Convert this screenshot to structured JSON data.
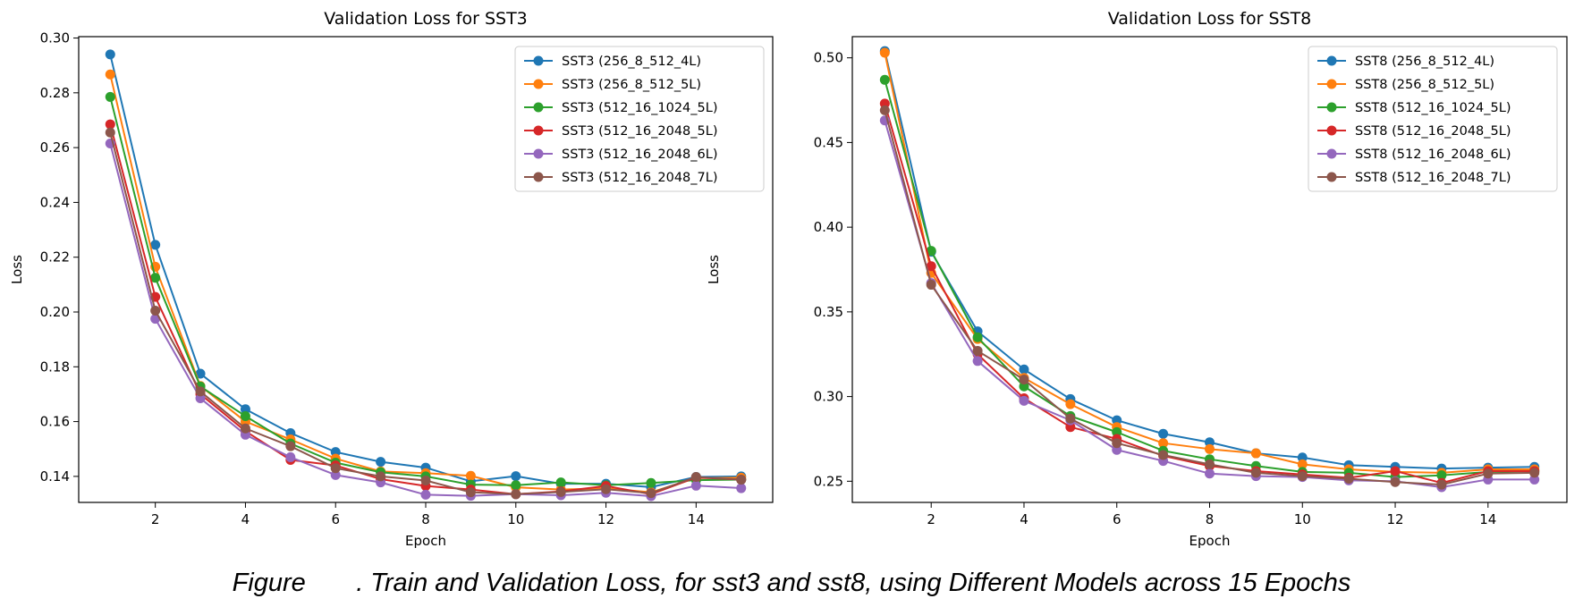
{
  "figure_caption": {
    "prefix": "Figure",
    "text": ". Train and Validation Loss, for sst3 and sst8, using Different Models across 15 Epochs"
  },
  "colors": {
    "series": [
      "#1f77b4",
      "#ff7f0e",
      "#2ca02c",
      "#d62728",
      "#9467bd",
      "#8c564b"
    ]
  },
  "chart_data": [
    {
      "type": "line",
      "title": "Validation Loss for SST3",
      "xlabel": "Epoch",
      "ylabel": "Loss",
      "xlim": [
        0.3,
        15.7
      ],
      "ylim": [
        0.1305,
        0.3005
      ],
      "xticks": [
        2,
        4,
        6,
        8,
        10,
        12,
        14
      ],
      "yticks": [
        0.14,
        0.16,
        0.18,
        0.2,
        0.22,
        0.24,
        0.26,
        0.28,
        0.3
      ],
      "ytick_labels": [
        "0.14",
        "0.16",
        "0.18",
        "0.20",
        "0.22",
        "0.24",
        "0.26",
        "0.28",
        "0.30"
      ],
      "legend_position": "top-right",
      "x": [
        1,
        2,
        3,
        4,
        5,
        6,
        7,
        8,
        9,
        10,
        11,
        12,
        13,
        14,
        15
      ],
      "series": [
        {
          "name": "SST3 (256_8_512_4L)",
          "values": [
            0.294,
            0.2245,
            0.1775,
            0.1645,
            0.1558,
            0.1489,
            0.1453,
            0.1432,
            0.1382,
            0.1401,
            0.1373,
            0.1373,
            0.1361,
            0.1398,
            0.14
          ]
        },
        {
          "name": "SST3 (256_8_512_5L)",
          "values": [
            0.2867,
            0.2165,
            0.173,
            0.16,
            0.1535,
            0.1465,
            0.1418,
            0.1412,
            0.1402,
            0.136,
            0.1352,
            0.1356,
            0.1342,
            0.1394,
            0.1395
          ]
        },
        {
          "name": "SST3 (512_16_1024_5L)",
          "values": [
            0.2785,
            0.2125,
            0.1728,
            0.162,
            0.152,
            0.145,
            0.1415,
            0.14,
            0.137,
            0.1368,
            0.1378,
            0.1368,
            0.1376,
            0.1386,
            0.1388
          ]
        },
        {
          "name": "SST3 (512_16_2048_5L)",
          "values": [
            0.2685,
            0.2055,
            0.17,
            0.1565,
            0.146,
            0.144,
            0.139,
            0.1365,
            0.1352,
            0.1335,
            0.1345,
            0.1365,
            0.1335,
            0.1396,
            0.1388
          ]
        },
        {
          "name": "SST3 (512_16_2048_6L)",
          "values": [
            0.2615,
            0.1975,
            0.1685,
            0.1552,
            0.147,
            0.1405,
            0.1378,
            0.1333,
            0.1329,
            0.1335,
            0.1331,
            0.134,
            0.1328,
            0.1366,
            0.1357
          ]
        },
        {
          "name": "SST3 (512_16_2048_7L)",
          "values": [
            0.2655,
            0.2005,
            0.171,
            0.1575,
            0.151,
            0.143,
            0.14,
            0.1385,
            0.1342,
            0.1335,
            0.1343,
            0.1353,
            0.1339,
            0.1398,
            0.1388
          ]
        }
      ]
    },
    {
      "type": "line",
      "title": "Validation Loss for SST8",
      "xlabel": "Epoch",
      "ylabel": "Loss",
      "xlim": [
        0.3,
        15.7
      ],
      "ylim": [
        0.2375,
        0.5125
      ],
      "xticks": [
        2,
        4,
        6,
        8,
        10,
        12,
        14
      ],
      "yticks": [
        0.25,
        0.3,
        0.35,
        0.4,
        0.45,
        0.5
      ],
      "ytick_labels": [
        "0.25",
        "0.30",
        "0.35",
        "0.40",
        "0.45",
        "0.50"
      ],
      "legend_position": "top-right",
      "x": [
        1,
        2,
        3,
        4,
        5,
        6,
        7,
        8,
        9,
        10,
        11,
        12,
        13,
        14,
        15
      ],
      "series": [
        {
          "name": "SST8 (256_8_512_4L)",
          "values": [
            0.504,
            0.3855,
            0.3385,
            0.316,
            0.2985,
            0.286,
            0.278,
            0.273,
            0.2665,
            0.264,
            0.2595,
            0.2585,
            0.2575,
            0.258,
            0.2585
          ]
        },
        {
          "name": "SST8 (256_8_512_5L)",
          "values": [
            0.503,
            0.373,
            0.334,
            0.311,
            0.2955,
            0.282,
            0.2725,
            0.269,
            0.2665,
            0.26,
            0.257,
            0.2555,
            0.255,
            0.257,
            0.257
          ]
        },
        {
          "name": "SST8 (512_16_1024_5L)",
          "values": [
            0.487,
            0.386,
            0.335,
            0.306,
            0.2885,
            0.279,
            0.268,
            0.263,
            0.259,
            0.2555,
            0.255,
            0.2525,
            0.2535,
            0.2555,
            0.256
          ]
        },
        {
          "name": "SST8 (512_16_2048_5L)",
          "values": [
            0.473,
            0.377,
            0.325,
            0.299,
            0.282,
            0.275,
            0.265,
            0.259,
            0.256,
            0.254,
            0.252,
            0.256,
            0.249,
            0.256,
            0.256
          ]
        },
        {
          "name": "SST8 (512_16_2048_6L)",
          "values": [
            0.463,
            0.367,
            0.321,
            0.2975,
            0.286,
            0.2685,
            0.262,
            0.2545,
            0.253,
            0.2525,
            0.2505,
            0.25,
            0.2465,
            0.251,
            0.251
          ]
        },
        {
          "name": "SST8 (512_16_2048_7L)",
          "values": [
            0.469,
            0.366,
            0.327,
            0.31,
            0.287,
            0.2725,
            0.2655,
            0.26,
            0.255,
            0.253,
            0.2515,
            0.2495,
            0.248,
            0.2545,
            0.255
          ]
        }
      ]
    }
  ]
}
